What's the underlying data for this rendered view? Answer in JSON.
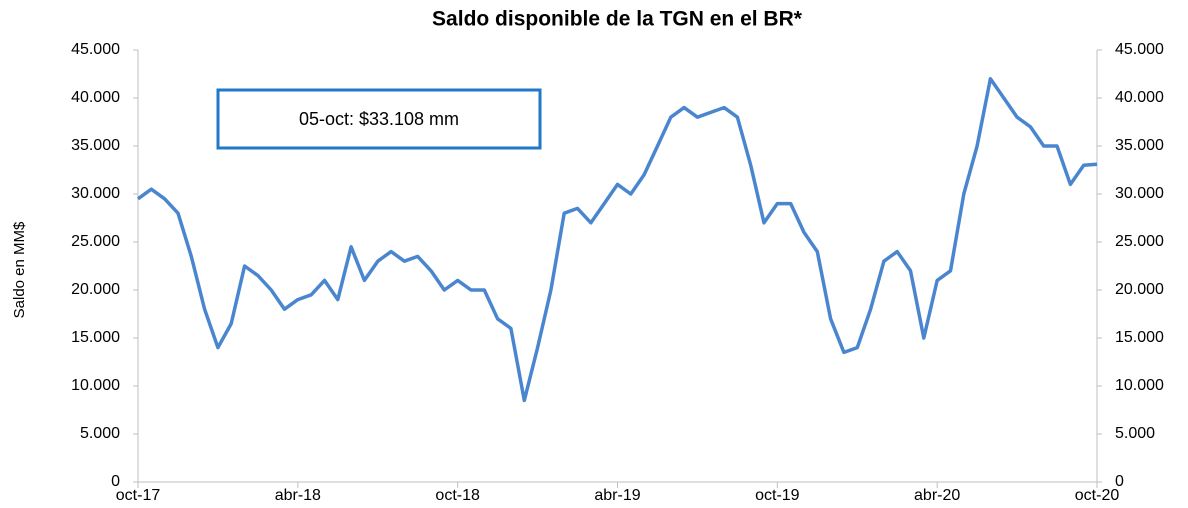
{
  "chart_data": {
    "type": "line",
    "title": "Saldo disponible de la TGN en el BR*",
    "y_label": "Saldo en MM$",
    "annotation": "05-oct: $33.108  mm",
    "categories": [
      "oct-17",
      null,
      null,
      null,
      null,
      null,
      null,
      null,
      null,
      null,
      null,
      null,
      "abr-18",
      null,
      null,
      null,
      null,
      null,
      null,
      null,
      null,
      null,
      null,
      null,
      "oct-18",
      null,
      null,
      null,
      null,
      null,
      null,
      null,
      null,
      null,
      null,
      null,
      "abr-19",
      null,
      null,
      null,
      null,
      null,
      null,
      null,
      null,
      null,
      null,
      null,
      "oct-19",
      null,
      null,
      null,
      null,
      null,
      null,
      null,
      null,
      null,
      null,
      null,
      "abr-20",
      null,
      null,
      null,
      null,
      null,
      null,
      null,
      null,
      null,
      null,
      null,
      "oct-20"
    ],
    "values": [
      29500,
      30500,
      29500,
      28000,
      23500,
      18000,
      14000,
      16500,
      22500,
      21500,
      20000,
      18000,
      19000,
      19500,
      21000,
      19000,
      24500,
      21000,
      23000,
      24000,
      23000,
      23500,
      22000,
      20000,
      21000,
      20000,
      20000,
      17000,
      16000,
      8500,
      14000,
      20000,
      28000,
      28500,
      27000,
      29000,
      31000,
      30000,
      32000,
      35000,
      38000,
      39000,
      38000,
      38500,
      39000,
      38000,
      33000,
      27000,
      29000,
      29000,
      26000,
      24000,
      17000,
      13500,
      14000,
      18000,
      23000,
      24000,
      22000,
      15000,
      21000,
      22000,
      30000,
      35000,
      42000,
      40000,
      38000,
      37000,
      35000,
      35000,
      31000,
      33000,
      33108
    ],
    "color": "#4a86d0",
    "ylim": [
      0,
      45000
    ],
    "yticks": [
      0,
      {
        "value": 5000,
        "label": "5.000"
      },
      {
        "value": 10000,
        "label": "10.000"
      },
      {
        "value": 15000,
        "label": "15.000"
      },
      {
        "value": 20000,
        "label": "20.000"
      },
      {
        "value": 25000,
        "label": "25.000"
      },
      {
        "value": 30000,
        "label": "30.000"
      },
      {
        "value": 35000,
        "label": "35.000"
      },
      {
        "value": 40000,
        "label": "40.000"
      },
      {
        "value": 45000,
        "label": "45.000"
      }
    ],
    "y2lim": [
      0,
      45000
    ],
    "y2ticks": [
      0,
      {
        "value": 5000,
        "label": "5.000"
      },
      {
        "value": 10000,
        "label": "10.000"
      },
      {
        "value": 15000,
        "label": "15.000"
      },
      {
        "value": 20000,
        "label": "20.000"
      },
      {
        "value": 25000,
        "label": "25.000"
      },
      {
        "value": 30000,
        "label": "30.000"
      },
      {
        "value": 35000,
        "label": "35.000"
      },
      {
        "value": 40000,
        "label": "40.000"
      },
      {
        "value": 45000,
        "label": "45.000"
      }
    ]
  }
}
